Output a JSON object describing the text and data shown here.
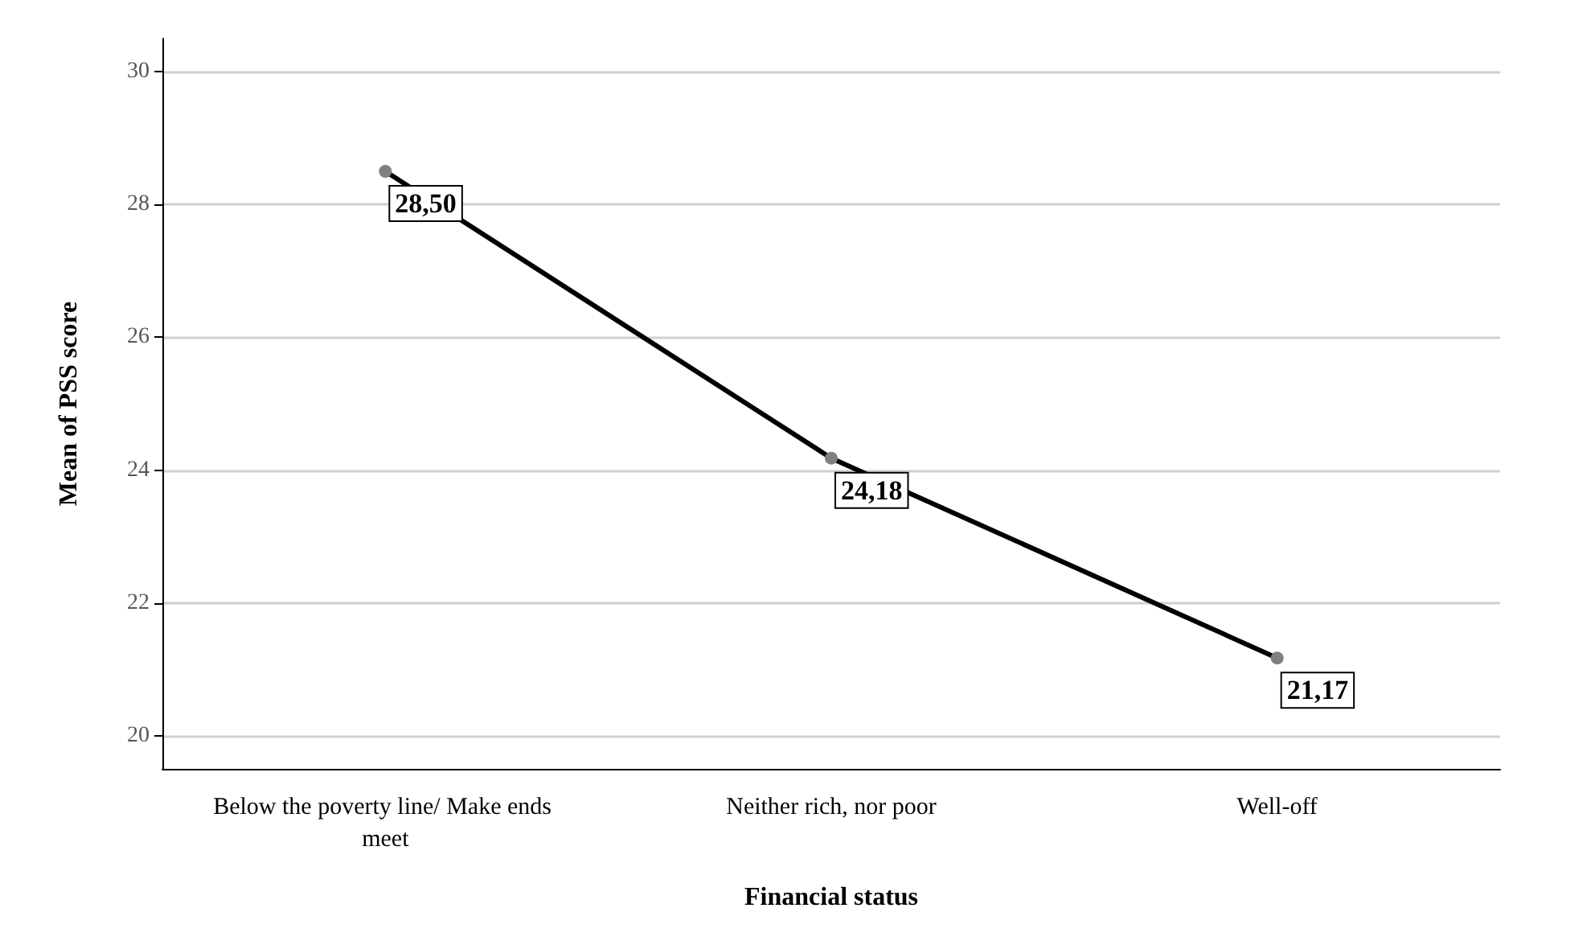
{
  "chart_data": {
    "type": "line",
    "xlabel": "Financial status",
    "ylabel": "Mean of PSS score",
    "categories": [
      "Below the poverty line/ Make ends meet",
      "Neither rich, nor poor",
      "Well-off"
    ],
    "series": [
      {
        "color": "#000000",
        "values": [
          28.5,
          24.18,
          21.17
        ],
        "value_labels": [
          "28,50",
          "24,18",
          "21,17"
        ]
      }
    ],
    "ylim": [
      19.5,
      30.5
    ],
    "yticks": [
      20,
      22,
      24,
      26,
      28,
      30
    ],
    "grid": "y",
    "marker": "circle",
    "line_style": "solid"
  }
}
